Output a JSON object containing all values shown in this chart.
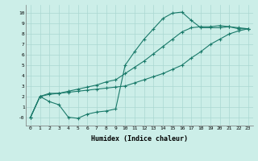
{
  "xlabel": "Humidex (Indice chaleur)",
  "ylabel": "",
  "background_color": "#cceee8",
  "grid_color": "#aad8d2",
  "line_color": "#1a7a6a",
  "xlim": [
    -0.5,
    23.5
  ],
  "ylim": [
    -0.8,
    10.8
  ],
  "xticks": [
    0,
    1,
    2,
    3,
    4,
    5,
    6,
    7,
    8,
    9,
    10,
    11,
    12,
    13,
    14,
    15,
    16,
    17,
    18,
    19,
    20,
    21,
    22,
    23
  ],
  "yticks": [
    0,
    1,
    2,
    3,
    4,
    5,
    6,
    7,
    8,
    9,
    10
  ],
  "ytick_labels": [
    "-0",
    "1",
    "2",
    "3",
    "4",
    "5",
    "6",
    "7",
    "8",
    "9",
    "10"
  ],
  "series1_x": [
    0,
    1,
    2,
    3,
    4,
    5,
    6,
    7,
    8,
    9,
    10,
    11,
    12,
    13,
    14,
    15,
    16,
    17,
    18,
    19,
    20,
    21,
    22,
    23
  ],
  "series1_y": [
    0.0,
    2.0,
    1.5,
    1.2,
    0.0,
    -0.1,
    0.3,
    0.5,
    0.6,
    0.8,
    5.0,
    6.3,
    7.5,
    8.5,
    9.5,
    10.0,
    10.1,
    9.3,
    8.6,
    8.6,
    8.6,
    8.7,
    8.5,
    8.5
  ],
  "series2_x": [
    0,
    1,
    2,
    3,
    4,
    5,
    6,
    7,
    8,
    9,
    10,
    11,
    12,
    13,
    14,
    15,
    16,
    17,
    18,
    19,
    20,
    21,
    22,
    23
  ],
  "series2_y": [
    0.0,
    2.0,
    2.2,
    2.3,
    2.4,
    2.5,
    2.6,
    2.7,
    2.8,
    2.9,
    3.0,
    3.3,
    3.6,
    3.9,
    4.2,
    4.6,
    5.0,
    5.7,
    6.3,
    7.0,
    7.5,
    8.0,
    8.3,
    8.5
  ],
  "series3_x": [
    0,
    1,
    2,
    3,
    4,
    5,
    6,
    7,
    8,
    9,
    10,
    11,
    12,
    13,
    14,
    15,
    16,
    17,
    18,
    19,
    20,
    21,
    22,
    23
  ],
  "series3_y": [
    0.0,
    2.0,
    2.3,
    2.3,
    2.5,
    2.7,
    2.9,
    3.1,
    3.4,
    3.6,
    4.2,
    4.8,
    5.4,
    6.1,
    6.8,
    7.5,
    8.2,
    8.6,
    8.7,
    8.7,
    8.8,
    8.7,
    8.6,
    8.5
  ]
}
